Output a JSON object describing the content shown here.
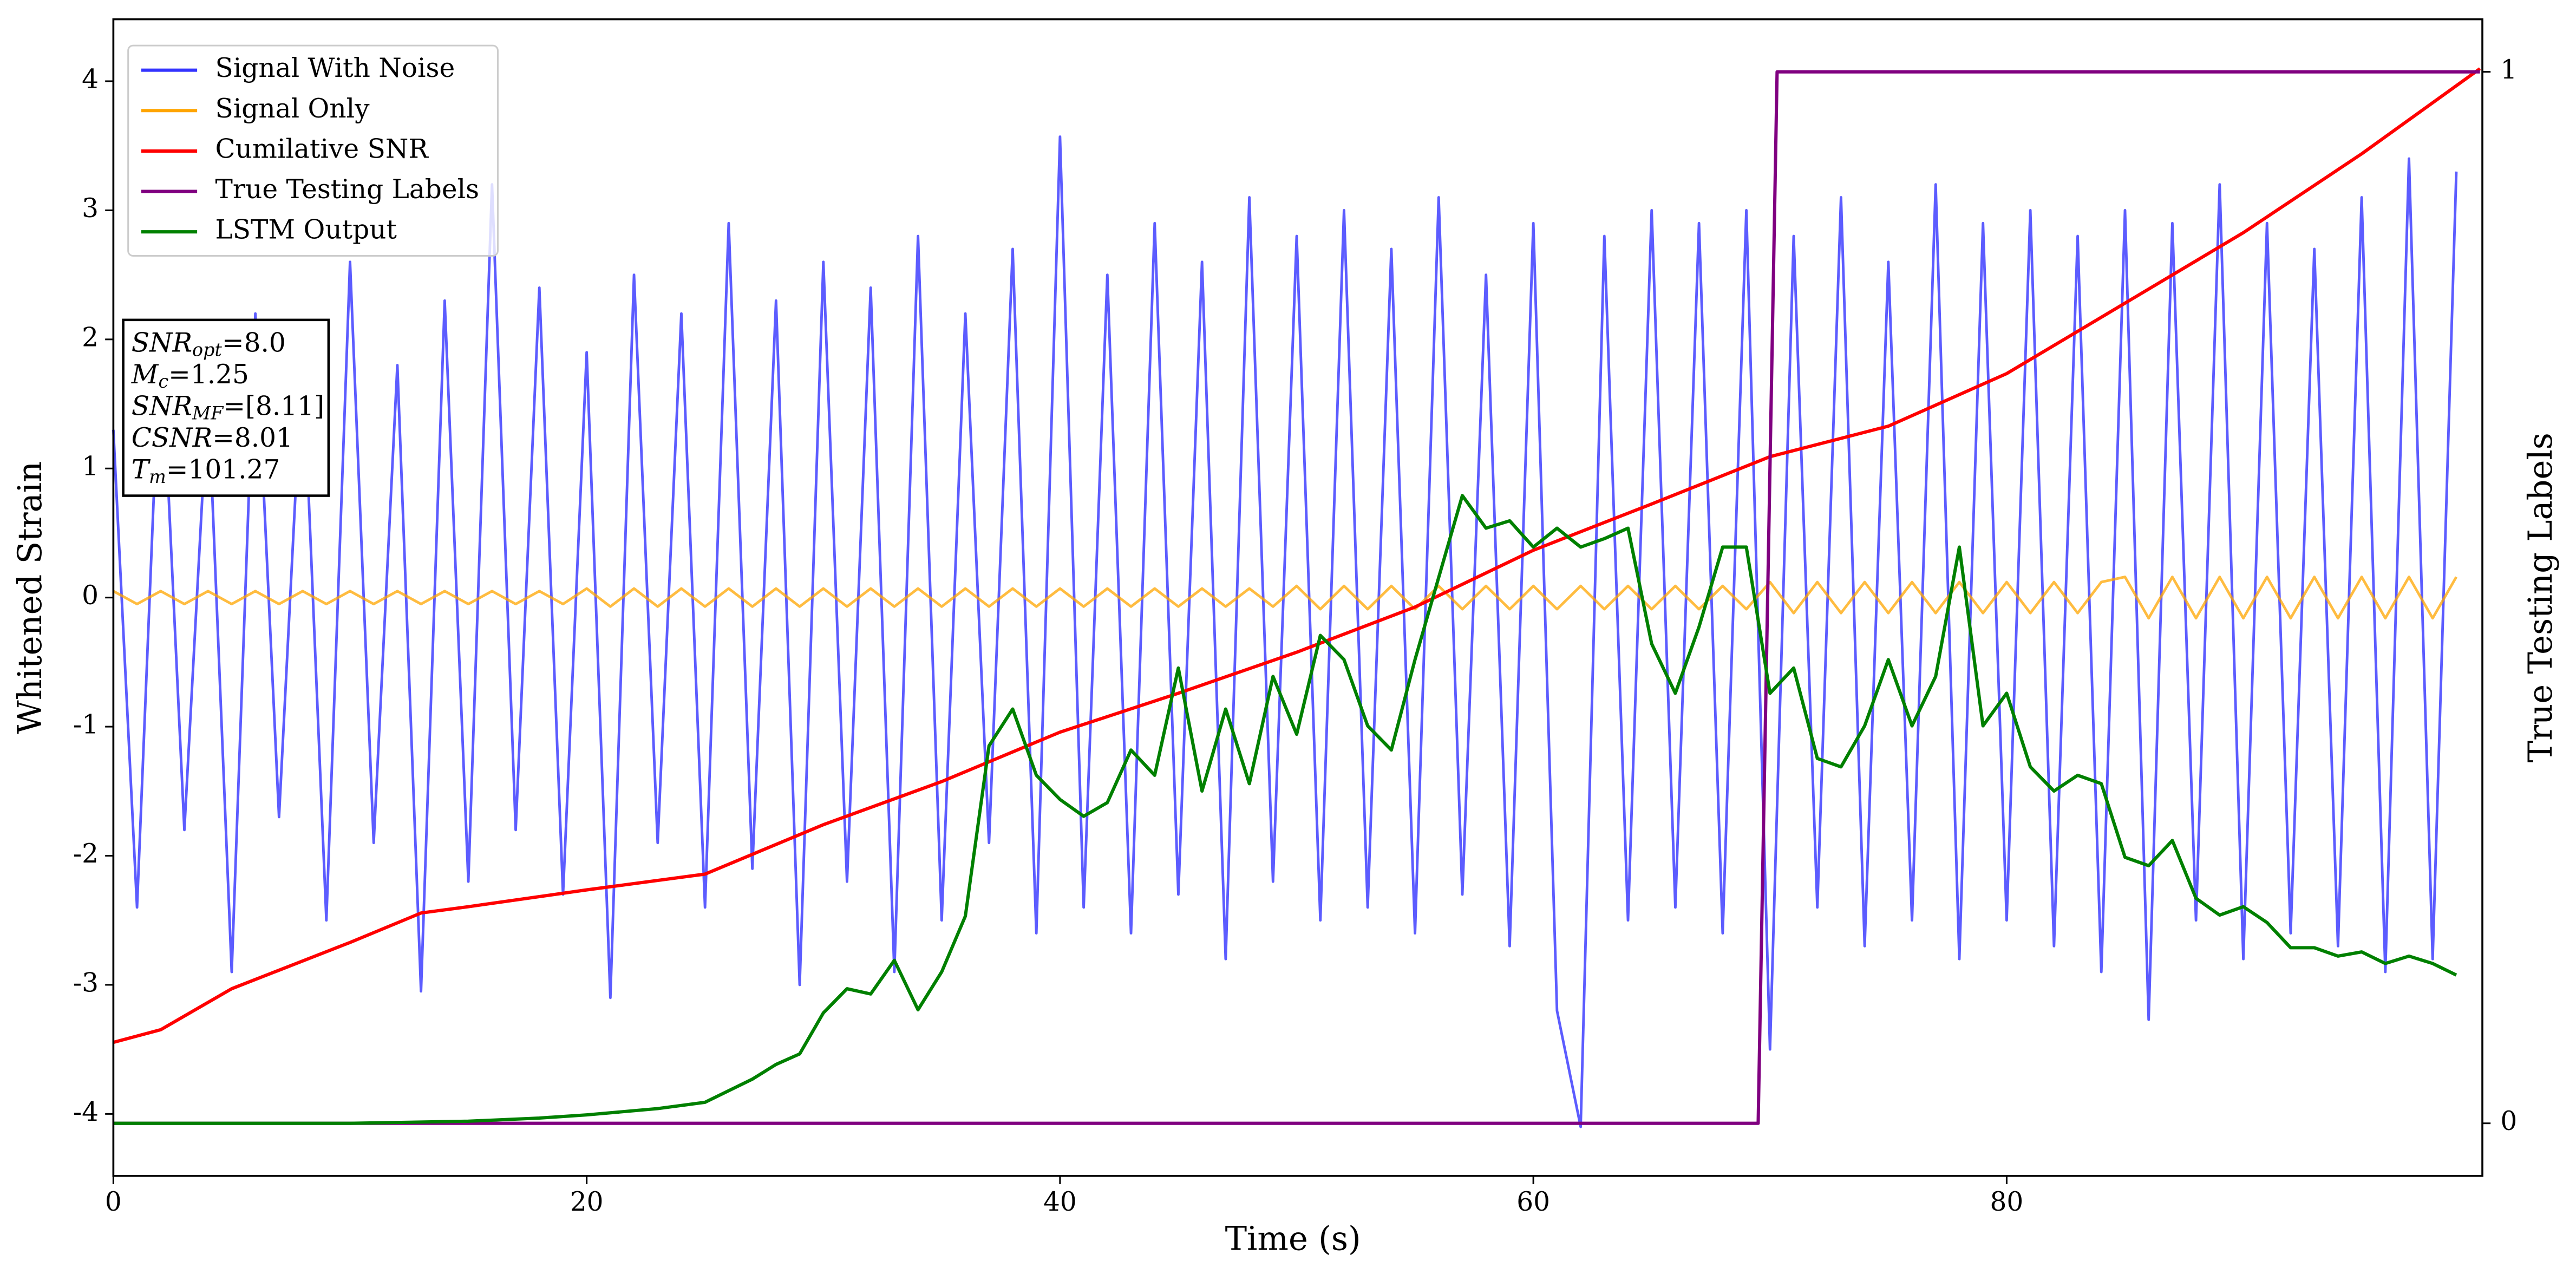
{
  "chart_data": {
    "type": "line",
    "xlabel": "Time (s)",
    "ylabel": "Whitened Strain",
    "y2label": "True Testing Labels",
    "xlim": [
      0,
      100.1
    ],
    "ylim": [
      -4.48,
      4.48
    ],
    "y2lim": [
      -0.05,
      1.05
    ],
    "xticks": [
      0,
      20,
      40,
      60,
      80
    ],
    "yticks": [
      -4,
      -3,
      -2,
      -1,
      0,
      1,
      2,
      3,
      4
    ],
    "y2ticks": [
      0,
      1
    ],
    "legend": "upper left",
    "x": [
      0,
      1,
      2,
      3,
      4,
      5,
      6,
      7,
      8,
      9,
      10,
      11,
      12,
      13,
      14,
      15,
      16,
      17,
      18,
      19,
      20,
      21,
      22,
      23,
      24,
      25,
      26,
      27,
      28,
      29,
      30,
      31,
      32,
      33,
      34,
      35,
      36,
      37,
      38,
      39,
      40,
      41,
      42,
      43,
      44,
      45,
      46,
      47,
      48,
      49,
      50,
      51,
      52,
      53,
      54,
      55,
      56,
      57,
      58,
      59,
      60,
      61,
      62,
      63,
      64,
      65,
      66,
      67,
      68,
      69,
      70,
      71,
      72,
      73,
      74,
      75,
      76,
      77,
      78,
      79,
      80,
      81,
      82,
      83,
      84,
      85,
      86,
      87,
      88,
      89,
      90,
      91,
      92,
      93,
      94,
      95,
      96,
      97,
      98,
      99
    ],
    "series": [
      {
        "name": "Signal With Noise",
        "color": "#3333ff",
        "values": [
          1.3,
          -2.4,
          2.1,
          -1.8,
          1.6,
          -2.9,
          2.2,
          -1.7,
          1.9,
          -2.5,
          2.6,
          -1.9,
          1.8,
          -3.05,
          2.3,
          -2.2,
          3.2,
          -1.8,
          2.4,
          -2.3,
          1.9,
          -3.1,
          2.5,
          -1.9,
          2.2,
          -2.4,
          2.9,
          -2.1,
          2.3,
          -3.0,
          2.6,
          -2.2,
          2.4,
          -2.9,
          2.8,
          -2.5,
          2.2,
          -1.9,
          2.7,
          -2.6,
          3.57,
          -2.4,
          2.5,
          -2.6,
          2.9,
          -2.3,
          2.6,
          -2.8,
          3.1,
          -2.2,
          2.8,
          -2.5,
          3.0,
          -2.4,
          2.7,
          -2.6,
          3.1,
          -2.3,
          2.5,
          -2.7,
          2.9,
          -3.2,
          -4.1,
          2.8,
          -2.5,
          3.0,
          -2.4,
          2.9,
          -2.6,
          3.0,
          -3.5,
          2.8,
          -2.4,
          3.1,
          -2.7,
          2.6,
          -2.5,
          3.2,
          -2.8,
          2.9,
          -2.5,
          3.0,
          -2.7,
          2.8,
          -2.9,
          3.0,
          -3.27,
          2.9,
          -2.5,
          3.2,
          -2.8,
          2.9,
          -2.6,
          2.7,
          -2.7,
          3.1,
          -2.9,
          3.4,
          -2.8,
          3.3
        ]
      },
      {
        "name": "Signal Only",
        "color": "#ffa500",
        "values": [
          0.05,
          -0.05,
          0.05,
          -0.05,
          0.05,
          -0.05,
          0.05,
          -0.05,
          0.05,
          -0.05,
          0.05,
          -0.05,
          0.05,
          -0.05,
          0.05,
          -0.05,
          0.05,
          -0.05,
          0.05,
          -0.05,
          0.07,
          -0.07,
          0.07,
          -0.07,
          0.07,
          -0.07,
          0.07,
          -0.07,
          0.07,
          -0.07,
          0.07,
          -0.07,
          0.07,
          -0.07,
          0.07,
          -0.07,
          0.07,
          -0.07,
          0.07,
          -0.07,
          0.07,
          -0.07,
          0.07,
          -0.07,
          0.07,
          -0.07,
          0.07,
          -0.07,
          0.07,
          -0.07,
          0.09,
          -0.09,
          0.09,
          -0.09,
          0.09,
          -0.09,
          0.09,
          -0.09,
          0.09,
          -0.09,
          0.09,
          -0.09,
          0.09,
          -0.09,
          0.09,
          -0.09,
          0.09,
          -0.09,
          0.09,
          -0.09,
          0.12,
          -0.12,
          0.12,
          -0.12,
          0.12,
          -0.12,
          0.12,
          -0.12,
          0.12,
          -0.12,
          0.12,
          -0.12,
          0.12,
          -0.12,
          0.12,
          0.16,
          -0.16,
          0.16,
          -0.16,
          0.16,
          -0.16,
          0.16,
          -0.16,
          0.16,
          -0.16,
          0.16,
          -0.16,
          0.16,
          -0.16,
          0.16
        ]
      },
      {
        "name": "Cumilative SNR",
        "color": "#ff0000",
        "axis": "y2",
        "x": [
          0,
          2,
          5,
          10,
          13,
          15,
          20,
          25,
          30,
          35,
          40,
          45,
          50,
          55,
          60,
          65,
          70,
          75,
          80,
          85,
          90,
          95,
          100
        ],
        "values": [
          0.077,
          0.089,
          0.128,
          0.172,
          0.2,
          0.206,
          0.222,
          0.237,
          0.284,
          0.325,
          0.372,
          0.409,
          0.448,
          0.491,
          0.545,
          0.589,
          0.634,
          0.663,
          0.713,
          0.78,
          0.847,
          0.922,
          1.003
        ]
      },
      {
        "name": "True Testing Labels",
        "color": "#800080",
        "axis": "y2",
        "x": [
          0,
          69.5,
          70.3,
          100
        ],
        "values": [
          0,
          0,
          1,
          1
        ]
      },
      {
        "name": "LSTM Output",
        "color": "#008000",
        "axis": "y2",
        "x": [
          0,
          10,
          15,
          18,
          20,
          23,
          25,
          27,
          28,
          29,
          30,
          31,
          32,
          33,
          34,
          35,
          36,
          37,
          38,
          39,
          40,
          41,
          42,
          43,
          44,
          45,
          46,
          47,
          48,
          49,
          50,
          51,
          52,
          53,
          54,
          55,
          56,
          57,
          58,
          59,
          60,
          61,
          62,
          63,
          64,
          65,
          66,
          67,
          68,
          69,
          70,
          71,
          72,
          73,
          74,
          75,
          76,
          77,
          78,
          79,
          80,
          81,
          82,
          83,
          84,
          85,
          86,
          87,
          88,
          89,
          90,
          91,
          92,
          93,
          94,
          95,
          96,
          97,
          98,
          99
        ],
        "values": [
          0,
          0,
          0.002,
          0.005,
          0.008,
          0.014,
          0.02,
          0.042,
          0.056,
          0.066,
          0.105,
          0.128,
          0.123,
          0.155,
          0.108,
          0.144,
          0.197,
          0.359,
          0.394,
          0.331,
          0.308,
          0.292,
          0.305,
          0.355,
          0.331,
          0.433,
          0.316,
          0.394,
          0.323,
          0.425,
          0.37,
          0.464,
          0.441,
          0.378,
          0.355,
          0.441,
          0.519,
          0.597,
          0.566,
          0.573,
          0.548,
          0.566,
          0.548,
          0.556,
          0.566,
          0.456,
          0.409,
          0.472,
          0.548,
          0.548,
          0.409,
          0.433,
          0.347,
          0.339,
          0.378,
          0.441,
          0.378,
          0.425,
          0.548,
          0.378,
          0.409,
          0.339,
          0.316,
          0.331,
          0.323,
          0.253,
          0.245,
          0.269,
          0.214,
          0.198,
          0.206,
          0.191,
          0.167,
          0.167,
          0.159,
          0.163,
          0.152,
          0.159,
          0.152,
          0.141
        ]
      }
    ],
    "annotation": [
      {
        "symbol": "SNR",
        "sub": "opt",
        "text": "=8.0"
      },
      {
        "symbol": "M",
        "sub": "c",
        "text": "=1.25"
      },
      {
        "symbol": "SNR",
        "sub": "MF",
        "text": "=[8.11]"
      },
      {
        "symbol": "CSNR",
        "text": "=8.01"
      },
      {
        "symbol": "T",
        "sub": "m",
        "text": "=101.27"
      }
    ]
  }
}
